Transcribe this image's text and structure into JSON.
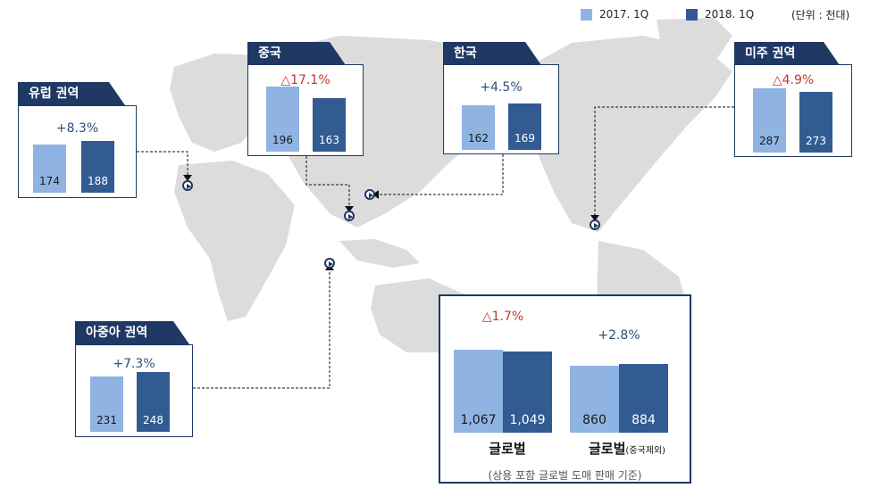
{
  "legend": [
    {
      "label": "2017. 1Q",
      "color": "#8fb4e3"
    },
    {
      "label": "2018. 1Q",
      "color": "#325b92"
    }
  ],
  "unit": "(단위 : 천대)",
  "chart_data": [
    {
      "type": "bar",
      "title": "유럽 권역",
      "change": "+8.3%",
      "change_color": "#2f4f7a",
      "categories": [
        "2017. 1Q",
        "2018. 1Q"
      ],
      "values": [
        174,
        188
      ],
      "labels": [
        "174",
        "188"
      ]
    },
    {
      "type": "bar",
      "title": "중국",
      "change": "△17.1%",
      "change_color": "#c0392b",
      "categories": [
        "2017. 1Q",
        "2018. 1Q"
      ],
      "values": [
        196,
        163
      ],
      "labels": [
        "196",
        "163"
      ]
    },
    {
      "type": "bar",
      "title": "한국",
      "change": "+4.5%",
      "change_color": "#2f4f7a",
      "categories": [
        "2017. 1Q",
        "2018. 1Q"
      ],
      "values": [
        162,
        169
      ],
      "labels": [
        "162",
        "169"
      ]
    },
    {
      "type": "bar",
      "title": "미주 권역",
      "change": "△4.9%",
      "change_color": "#c0392b",
      "categories": [
        "2017. 1Q",
        "2018. 1Q"
      ],
      "values": [
        287,
        273
      ],
      "labels": [
        "287",
        "273"
      ]
    },
    {
      "type": "bar",
      "title": "아중아 권역",
      "change": "+7.3%",
      "change_color": "#2f4f7a",
      "categories": [
        "2017. 1Q",
        "2018. 1Q"
      ],
      "values": [
        231,
        248
      ],
      "labels": [
        "231",
        "248"
      ]
    },
    {
      "type": "bar",
      "title": "",
      "categories": [
        "글로벌",
        "글로벌(중국제외)"
      ],
      "series": [
        {
          "name": "2017. 1Q",
          "values": [
            1067,
            860
          ],
          "labels": [
            "1,067",
            "860"
          ]
        },
        {
          "name": "2018. 1Q",
          "values": [
            1049,
            884
          ],
          "labels": [
            "1,049",
            "884"
          ]
        }
      ],
      "changes": [
        {
          "text": "△1.7%",
          "color": "#c0392b"
        },
        {
          "text": "+2.8%",
          "color": "#2f4f7a"
        }
      ],
      "note": "(상용 포함 글로벌 도매 판매 기준)"
    }
  ],
  "global": {
    "cat1": "글로벌",
    "cat2": "글로벌",
    "cat2_sub": "(중국제외)"
  }
}
